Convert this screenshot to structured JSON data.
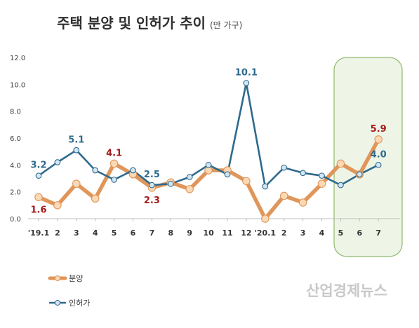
{
  "chart_data": {
    "type": "line",
    "title": "주택 분양 및 인허가 추이",
    "subtitle": "(만 가구)",
    "categories": [
      "'19.1",
      "2",
      "3",
      "4",
      "5",
      "6",
      "7",
      "8",
      "9",
      "10",
      "11",
      "12",
      "'20.1",
      "2",
      "3",
      "4",
      "5",
      "6",
      "7"
    ],
    "ylim": [
      0,
      12
    ],
    "y_ticks": [
      "0.0",
      "2.0",
      "4.0",
      "6.0",
      "8.0",
      "10.0",
      "12.0"
    ],
    "grid": false,
    "legend_position": "bottom-left",
    "highlight_range": [
      "5",
      "7"
    ],
    "series": [
      {
        "name": "분양",
        "color": "#e0965a",
        "marker_fill": "#fbd9b5",
        "label_color": "#a31c1c",
        "values": [
          1.6,
          1.0,
          2.6,
          1.5,
          4.1,
          3.3,
          2.3,
          2.7,
          2.2,
          3.6,
          3.6,
          2.8,
          0.0,
          1.7,
          1.2,
          2.6,
          4.1,
          3.3,
          5.9
        ],
        "labels": [
          {
            "index": 0,
            "text": "1.6",
            "pos": "below"
          },
          {
            "index": 4,
            "text": "4.1",
            "pos": "above"
          },
          {
            "index": 6,
            "text": "2.3",
            "pos": "below"
          },
          {
            "index": 18,
            "text": "5.9",
            "pos": "above"
          }
        ]
      },
      {
        "name": "인허가",
        "color": "#2e6a8d",
        "marker_fill": "#d4e6f3",
        "label_color": "#2e6a8d",
        "values": [
          3.2,
          4.2,
          5.1,
          3.6,
          2.9,
          3.6,
          2.5,
          2.6,
          3.1,
          4.0,
          3.3,
          10.1,
          2.4,
          3.8,
          3.4,
          3.2,
          2.5,
          3.3,
          4.0
        ],
        "labels": [
          {
            "index": 0,
            "text": "3.2",
            "pos": "above"
          },
          {
            "index": 2,
            "text": "5.1",
            "pos": "above"
          },
          {
            "index": 6,
            "text": "2.5",
            "pos": "above"
          },
          {
            "index": 11,
            "text": "10.1",
            "pos": "above"
          },
          {
            "index": 18,
            "text": "4.0",
            "pos": "above"
          }
        ]
      }
    ]
  },
  "watermark": "산업경제뉴스"
}
